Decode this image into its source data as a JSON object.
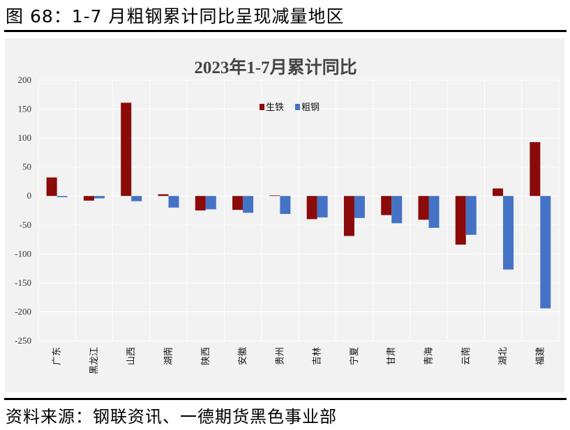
{
  "figure_title": "图 68：1-7 月粗钢累计同比呈现减量地区",
  "source": "资料来源：钢联资讯、一德期货黑色事业部",
  "colors": {
    "pig_iron": "#8B0A0A",
    "crude_steel": "#4472C4",
    "plot_bg": "#F2F2F2",
    "grid": "#FFFFFF"
  },
  "chart_data": {
    "type": "bar",
    "title": "2023年1-7月累计同比",
    "xlabel": "",
    "ylabel": "",
    "ylim": [
      -250,
      200
    ],
    "yticks": [
      200,
      150,
      100,
      50,
      0,
      -50,
      -100,
      -150,
      -200,
      -250
    ],
    "legend_position": "top-center",
    "categories": [
      "广东",
      "黑龙江",
      "山西",
      "湖南",
      "陕西",
      "安徽",
      "贵州",
      "吉林",
      "宁夏",
      "甘肃",
      "青海",
      "云南",
      "湖北",
      "福建"
    ],
    "series": [
      {
        "name": "生铁",
        "values": [
          32,
          -8,
          161,
          3,
          -25,
          -24,
          1,
          -40,
          -69,
          -33,
          -41,
          -84,
          13,
          93
        ]
      },
      {
        "name": "粗钢",
        "values": [
          -2,
          -4,
          -9,
          -20,
          -23,
          -29,
          -31,
          -37,
          -38,
          -47,
          -55,
          -67,
          -127,
          -194
        ]
      }
    ]
  }
}
